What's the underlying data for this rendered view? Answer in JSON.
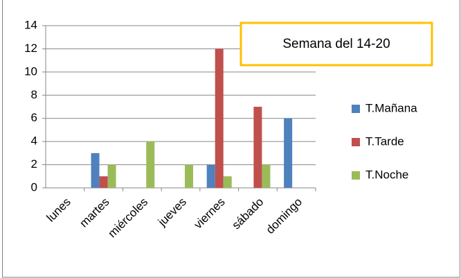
{
  "chart_data": {
    "type": "bar",
    "annotation": "Semana del 14-20",
    "categories": [
      "lunes",
      "martes",
      "miércoles",
      "jueves",
      "viernes",
      "sábado",
      "domingo"
    ],
    "series": [
      {
        "name": "T.Mañana",
        "color": "#4f81bd",
        "values": [
          0,
          3,
          0,
          0,
          2,
          0,
          6
        ]
      },
      {
        "name": "T.Tarde",
        "color": "#c0504d",
        "values": [
          0,
          1,
          0,
          0,
          12,
          7,
          0
        ]
      },
      {
        "name": "T.Noche",
        "color": "#9bbb59",
        "values": [
          0,
          2,
          4,
          2,
          1,
          2,
          0
        ]
      }
    ],
    "ylim": [
      0,
      14
    ],
    "yticks": [
      0,
      2,
      4,
      6,
      8,
      10,
      12,
      14
    ],
    "grid": true,
    "legend": "right"
  }
}
